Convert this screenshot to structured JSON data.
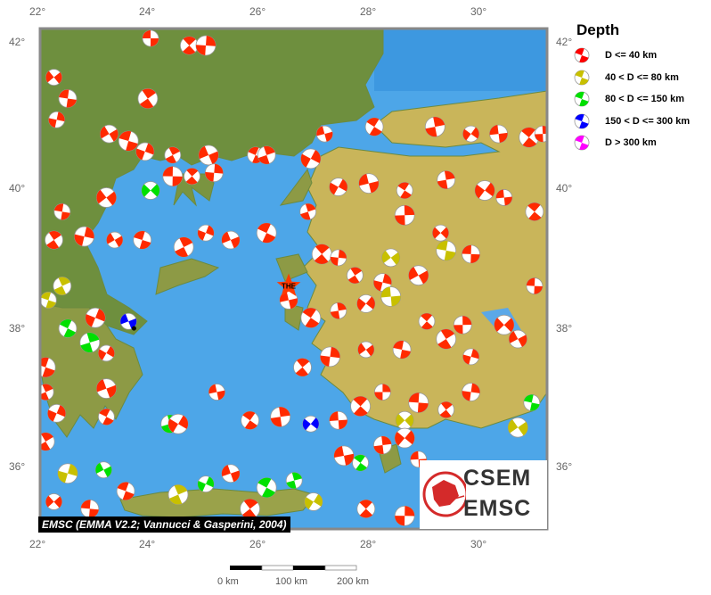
{
  "axes": {
    "lon_ticks": [
      "22°",
      "24°",
      "26°",
      "28°",
      "30°"
    ],
    "lat_ticks": [
      "42°",
      "40°",
      "38°",
      "36°"
    ]
  },
  "legend": {
    "title": "Depth",
    "items": [
      {
        "label": "D <= 40 km",
        "color": "#ff0000"
      },
      {
        "label": "40 < D <= 80 km",
        "color": "#c8c000"
      },
      {
        "label": "80 < D <= 150 km",
        "color": "#00e000"
      },
      {
        "label": "150 < D <= 300 km",
        "color": "#0000ff"
      },
      {
        "label": "D > 300 km",
        "color": "#ff00ff"
      }
    ]
  },
  "attribution": "EMSC (EMMA V2.2; Vannucci & Gasperini, 2004)",
  "logo": {
    "line1": "CSEM",
    "line2": "EMSC"
  },
  "scale_bar": {
    "labels": [
      "0 km",
      "100 km",
      "200 km"
    ]
  },
  "station": {
    "label": "THE",
    "lon": 26.5,
    "lat": 38.55
  },
  "city_dot": {
    "lon": 23.7,
    "lat": 37.95
  },
  "colors": {
    "sea": "#4da6e8",
    "land": "#c9b55a",
    "lowland": "#5f8a3a",
    "r": "#ff2a00",
    "y": "#c8c000",
    "g": "#00e000",
    "b": "#0000ff"
  },
  "events": [
    [
      24.0,
      42.05,
      "r"
    ],
    [
      24.7,
      41.95,
      "r"
    ],
    [
      25.0,
      41.95,
      "r"
    ],
    [
      22.25,
      41.5,
      "r"
    ],
    [
      22.5,
      41.2,
      "r"
    ],
    [
      23.95,
      41.2,
      "r"
    ],
    [
      22.3,
      40.9,
      "r"
    ],
    [
      23.25,
      40.7,
      "r"
    ],
    [
      23.6,
      40.6,
      "r"
    ],
    [
      24.4,
      40.4,
      "r"
    ],
    [
      23.9,
      40.45,
      "r"
    ],
    [
      25.05,
      40.4,
      "r"
    ],
    [
      25.9,
      40.4,
      "r"
    ],
    [
      26.1,
      40.4,
      "r"
    ],
    [
      26.9,
      40.35,
      "r"
    ],
    [
      27.15,
      40.7,
      "r"
    ],
    [
      28.05,
      40.8,
      "r"
    ],
    [
      29.15,
      40.8,
      "r"
    ],
    [
      29.8,
      40.7,
      "r"
    ],
    [
      30.3,
      40.7,
      "r"
    ],
    [
      30.85,
      40.65,
      "r"
    ],
    [
      31.1,
      40.7,
      "r"
    ],
    [
      24.0,
      39.9,
      "g"
    ],
    [
      24.4,
      40.1,
      "r"
    ],
    [
      24.75,
      40.1,
      "r"
    ],
    [
      25.15,
      40.15,
      "r"
    ],
    [
      23.2,
      39.8,
      "r"
    ],
    [
      22.4,
      39.6,
      "r"
    ],
    [
      22.25,
      39.2,
      "r"
    ],
    [
      22.8,
      39.25,
      "r"
    ],
    [
      23.35,
      39.2,
      "r"
    ],
    [
      23.85,
      39.2,
      "r"
    ],
    [
      24.6,
      39.1,
      "r"
    ],
    [
      25.0,
      39.3,
      "r"
    ],
    [
      25.45,
      39.2,
      "r"
    ],
    [
      26.1,
      39.3,
      "r"
    ],
    [
      26.85,
      39.6,
      "r"
    ],
    [
      27.4,
      39.95,
      "r"
    ],
    [
      27.95,
      40.0,
      "r"
    ],
    [
      28.6,
      39.9,
      "r"
    ],
    [
      29.35,
      40.05,
      "r"
    ],
    [
      30.05,
      39.9,
      "r"
    ],
    [
      30.4,
      39.8,
      "r"
    ],
    [
      30.95,
      39.6,
      "r"
    ],
    [
      28.6,
      39.55,
      "r"
    ],
    [
      29.25,
      39.3,
      "r"
    ],
    [
      29.8,
      39.0,
      "r"
    ],
    [
      27.1,
      39.0,
      "r"
    ],
    [
      27.4,
      38.95,
      "r"
    ],
    [
      28.35,
      38.95,
      "y"
    ],
    [
      29.35,
      39.05,
      "y"
    ],
    [
      27.7,
      38.7,
      "r"
    ],
    [
      28.2,
      38.6,
      "r"
    ],
    [
      28.85,
      38.7,
      "r"
    ],
    [
      22.15,
      38.35,
      "y"
    ],
    [
      22.4,
      38.55,
      "y"
    ],
    [
      23.0,
      38.1,
      "r"
    ],
    [
      23.6,
      38.05,
      "b"
    ],
    [
      22.5,
      37.95,
      "g"
    ],
    [
      22.9,
      37.75,
      "g"
    ],
    [
      23.2,
      37.6,
      "r"
    ],
    [
      26.5,
      38.35,
      "r"
    ],
    [
      26.9,
      38.1,
      "r"
    ],
    [
      27.4,
      38.2,
      "r"
    ],
    [
      27.9,
      38.3,
      "r"
    ],
    [
      28.35,
      38.4,
      "y"
    ],
    [
      29.0,
      38.05,
      "r"
    ],
    [
      29.65,
      38.0,
      "r"
    ],
    [
      30.4,
      38.0,
      "r"
    ],
    [
      30.95,
      38.55,
      "r"
    ],
    [
      26.75,
      37.4,
      "r"
    ],
    [
      27.25,
      37.55,
      "r"
    ],
    [
      27.9,
      37.65,
      "r"
    ],
    [
      28.55,
      37.65,
      "r"
    ],
    [
      29.35,
      37.8,
      "r"
    ],
    [
      29.8,
      37.55,
      "r"
    ],
    [
      30.65,
      37.8,
      "r"
    ],
    [
      22.1,
      37.4,
      "r"
    ],
    [
      22.1,
      37.05,
      "r"
    ],
    [
      22.3,
      36.75,
      "r"
    ],
    [
      23.2,
      37.1,
      "r"
    ],
    [
      23.2,
      36.7,
      "r"
    ],
    [
      24.35,
      36.6,
      "g"
    ],
    [
      24.5,
      36.6,
      "r"
    ],
    [
      25.2,
      37.05,
      "r"
    ],
    [
      25.8,
      36.65,
      "r"
    ],
    [
      26.35,
      36.7,
      "r"
    ],
    [
      26.9,
      36.6,
      "b"
    ],
    [
      27.4,
      36.65,
      "r"
    ],
    [
      27.8,
      36.85,
      "r"
    ],
    [
      28.2,
      37.05,
      "r"
    ],
    [
      28.6,
      36.65,
      "y"
    ],
    [
      28.85,
      36.9,
      "r"
    ],
    [
      29.35,
      36.8,
      "r"
    ],
    [
      29.8,
      37.05,
      "r"
    ],
    [
      30.65,
      36.55,
      "y"
    ],
    [
      30.9,
      36.9,
      "g"
    ],
    [
      22.1,
      36.35,
      "r"
    ],
    [
      22.5,
      35.9,
      "y"
    ],
    [
      23.15,
      35.95,
      "g"
    ],
    [
      23.55,
      35.65,
      "r"
    ],
    [
      24.5,
      35.6,
      "y"
    ],
    [
      25.0,
      35.75,
      "g"
    ],
    [
      25.45,
      35.9,
      "r"
    ],
    [
      26.1,
      35.7,
      "g"
    ],
    [
      26.6,
      35.8,
      "g"
    ],
    [
      26.95,
      35.5,
      "y"
    ],
    [
      27.5,
      36.15,
      "r"
    ],
    [
      27.8,
      36.05,
      "g"
    ],
    [
      28.2,
      36.3,
      "r"
    ],
    [
      28.6,
      36.4,
      "r"
    ],
    [
      28.85,
      36.1,
      "r"
    ],
    [
      27.9,
      35.4,
      "r"
    ],
    [
      28.6,
      35.3,
      "r"
    ],
    [
      22.25,
      35.5,
      "r"
    ],
    [
      22.9,
      35.4,
      "r"
    ],
    [
      25.8,
      35.4,
      "r"
    ]
  ]
}
